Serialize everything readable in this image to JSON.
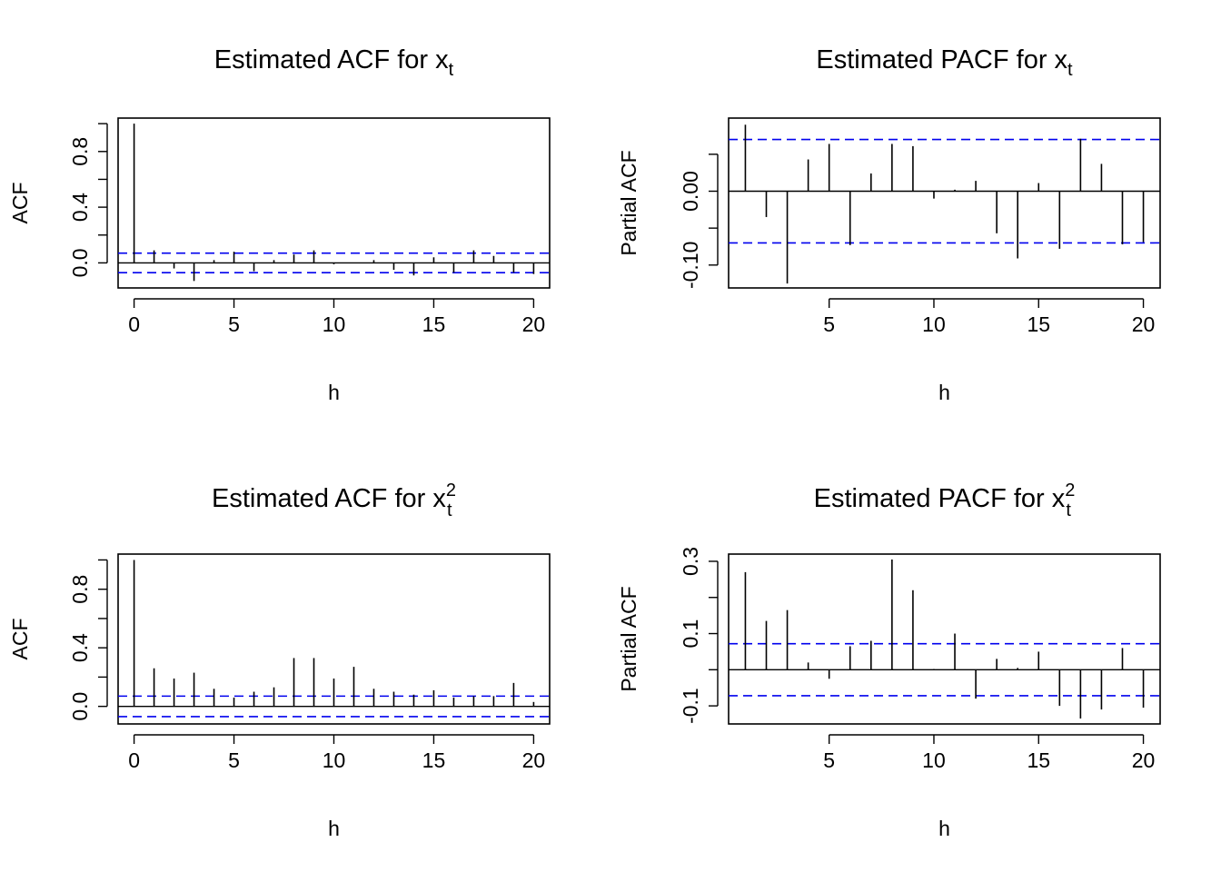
{
  "colors": {
    "bar": "#000000",
    "confidence_band": "#0000ee",
    "frame": "#000000",
    "zero_line": "#000000"
  },
  "chart_data": [
    {
      "type": "bar",
      "title": "Estimated ACF for x",
      "title_sub": "t",
      "title_sup": "",
      "xlabel": "h",
      "ylabel": "ACF",
      "xlim": [
        -0.8,
        20.8
      ],
      "ylim": [
        -0.18,
        1.04
      ],
      "xticks": [
        0,
        5,
        10,
        15,
        20
      ],
      "xtick_labels": [
        "0",
        "5",
        "10",
        "15",
        "20"
      ],
      "yticks": [
        0.0,
        0.2,
        0.4,
        0.6,
        0.8,
        1.0
      ],
      "ytick_labels": [
        "0.0",
        "",
        "0.4",
        "",
        "0.8",
        ""
      ],
      "confidence_bounds": [
        0.07,
        -0.07
      ],
      "x": [
        0,
        1,
        2,
        3,
        4,
        5,
        6,
        7,
        8,
        9,
        10,
        11,
        12,
        13,
        14,
        15,
        16,
        17,
        18,
        19,
        20
      ],
      "values": [
        1.0,
        0.09,
        -0.04,
        -0.13,
        0.02,
        0.08,
        -0.06,
        0.02,
        0.06,
        0.09,
        -0.01,
        0.0,
        0.02,
        -0.05,
        -0.09,
        0.04,
        -0.07,
        0.09,
        0.05,
        -0.07,
        -0.08
      ],
      "grid": false
    },
    {
      "type": "bar",
      "title": "Estimated PACF for x",
      "title_sub": "t",
      "title_sup": "",
      "xlabel": "h",
      "ylabel": "Partial ACF",
      "xlim": [
        0.2,
        20.8
      ],
      "ylim": [
        -0.131,
        0.099
      ],
      "xticks": [
        5,
        10,
        15,
        20
      ],
      "xtick_labels": [
        "5",
        "10",
        "15",
        "20"
      ],
      "yticks": [
        -0.1,
        -0.05,
        0.0,
        0.05
      ],
      "ytick_labels": [
        "-0.10",
        "",
        "0.00",
        ""
      ],
      "confidence_bounds": [
        0.07,
        -0.07
      ],
      "x": [
        1,
        2,
        3,
        4,
        5,
        6,
        7,
        8,
        9,
        10,
        11,
        12,
        13,
        14,
        15,
        16,
        17,
        18,
        19,
        20
      ],
      "values": [
        0.09,
        -0.035,
        -0.125,
        0.043,
        0.064,
        -0.073,
        0.024,
        0.064,
        0.061,
        -0.01,
        0.002,
        0.014,
        -0.057,
        -0.091,
        0.011,
        -0.078,
        0.071,
        0.037,
        -0.072,
        -0.069
      ],
      "grid": false
    },
    {
      "type": "bar",
      "title": "Estimated ACF for x",
      "title_sub": "t",
      "title_sup": "2",
      "xlabel": "h",
      "ylabel": "ACF",
      "xlim": [
        -0.8,
        20.8
      ],
      "ylim": [
        -0.12,
        1.04
      ],
      "xticks": [
        0,
        5,
        10,
        15,
        20
      ],
      "xtick_labels": [
        "0",
        "5",
        "10",
        "15",
        "20"
      ],
      "yticks": [
        0.0,
        0.2,
        0.4,
        0.6,
        0.8,
        1.0
      ],
      "ytick_labels": [
        "0.0",
        "",
        "0.4",
        "",
        "0.8",
        ""
      ],
      "confidence_bounds": [
        0.07,
        -0.07
      ],
      "x": [
        0,
        1,
        2,
        3,
        4,
        5,
        6,
        7,
        8,
        9,
        10,
        11,
        12,
        13,
        14,
        15,
        16,
        17,
        18,
        19,
        20
      ],
      "values": [
        1.0,
        0.26,
        0.19,
        0.23,
        0.12,
        0.06,
        0.1,
        0.13,
        0.33,
        0.33,
        0.19,
        0.27,
        0.12,
        0.1,
        0.08,
        0.11,
        0.06,
        0.07,
        0.07,
        0.16,
        0.03
      ],
      "grid": false
    },
    {
      "type": "bar",
      "title": "Estimated PACF for x",
      "title_sub": "t",
      "title_sup": "2",
      "xlabel": "h",
      "ylabel": "Partial ACF",
      "xlim": [
        0.2,
        20.8
      ],
      "ylim": [
        -0.15,
        0.32
      ],
      "xticks": [
        5,
        10,
        15,
        20
      ],
      "xtick_labels": [
        "5",
        "10",
        "15",
        "20"
      ],
      "yticks": [
        -0.1,
        0.0,
        0.1,
        0.2,
        0.3
      ],
      "ytick_labels": [
        "-0.1",
        "",
        "0.1",
        "",
        "0.3"
      ],
      "confidence_bounds": [
        0.072,
        -0.072
      ],
      "x": [
        1,
        2,
        3,
        4,
        5,
        6,
        7,
        8,
        9,
        10,
        11,
        12,
        13,
        14,
        15,
        16,
        17,
        18,
        19,
        20
      ],
      "values": [
        0.27,
        0.135,
        0.165,
        0.02,
        -0.025,
        0.065,
        0.08,
        0.305,
        0.22,
        0.002,
        0.1,
        -0.08,
        0.03,
        0.005,
        0.05,
        -0.1,
        -0.135,
        -0.11,
        0.06,
        -0.105
      ],
      "grid": false
    }
  ]
}
